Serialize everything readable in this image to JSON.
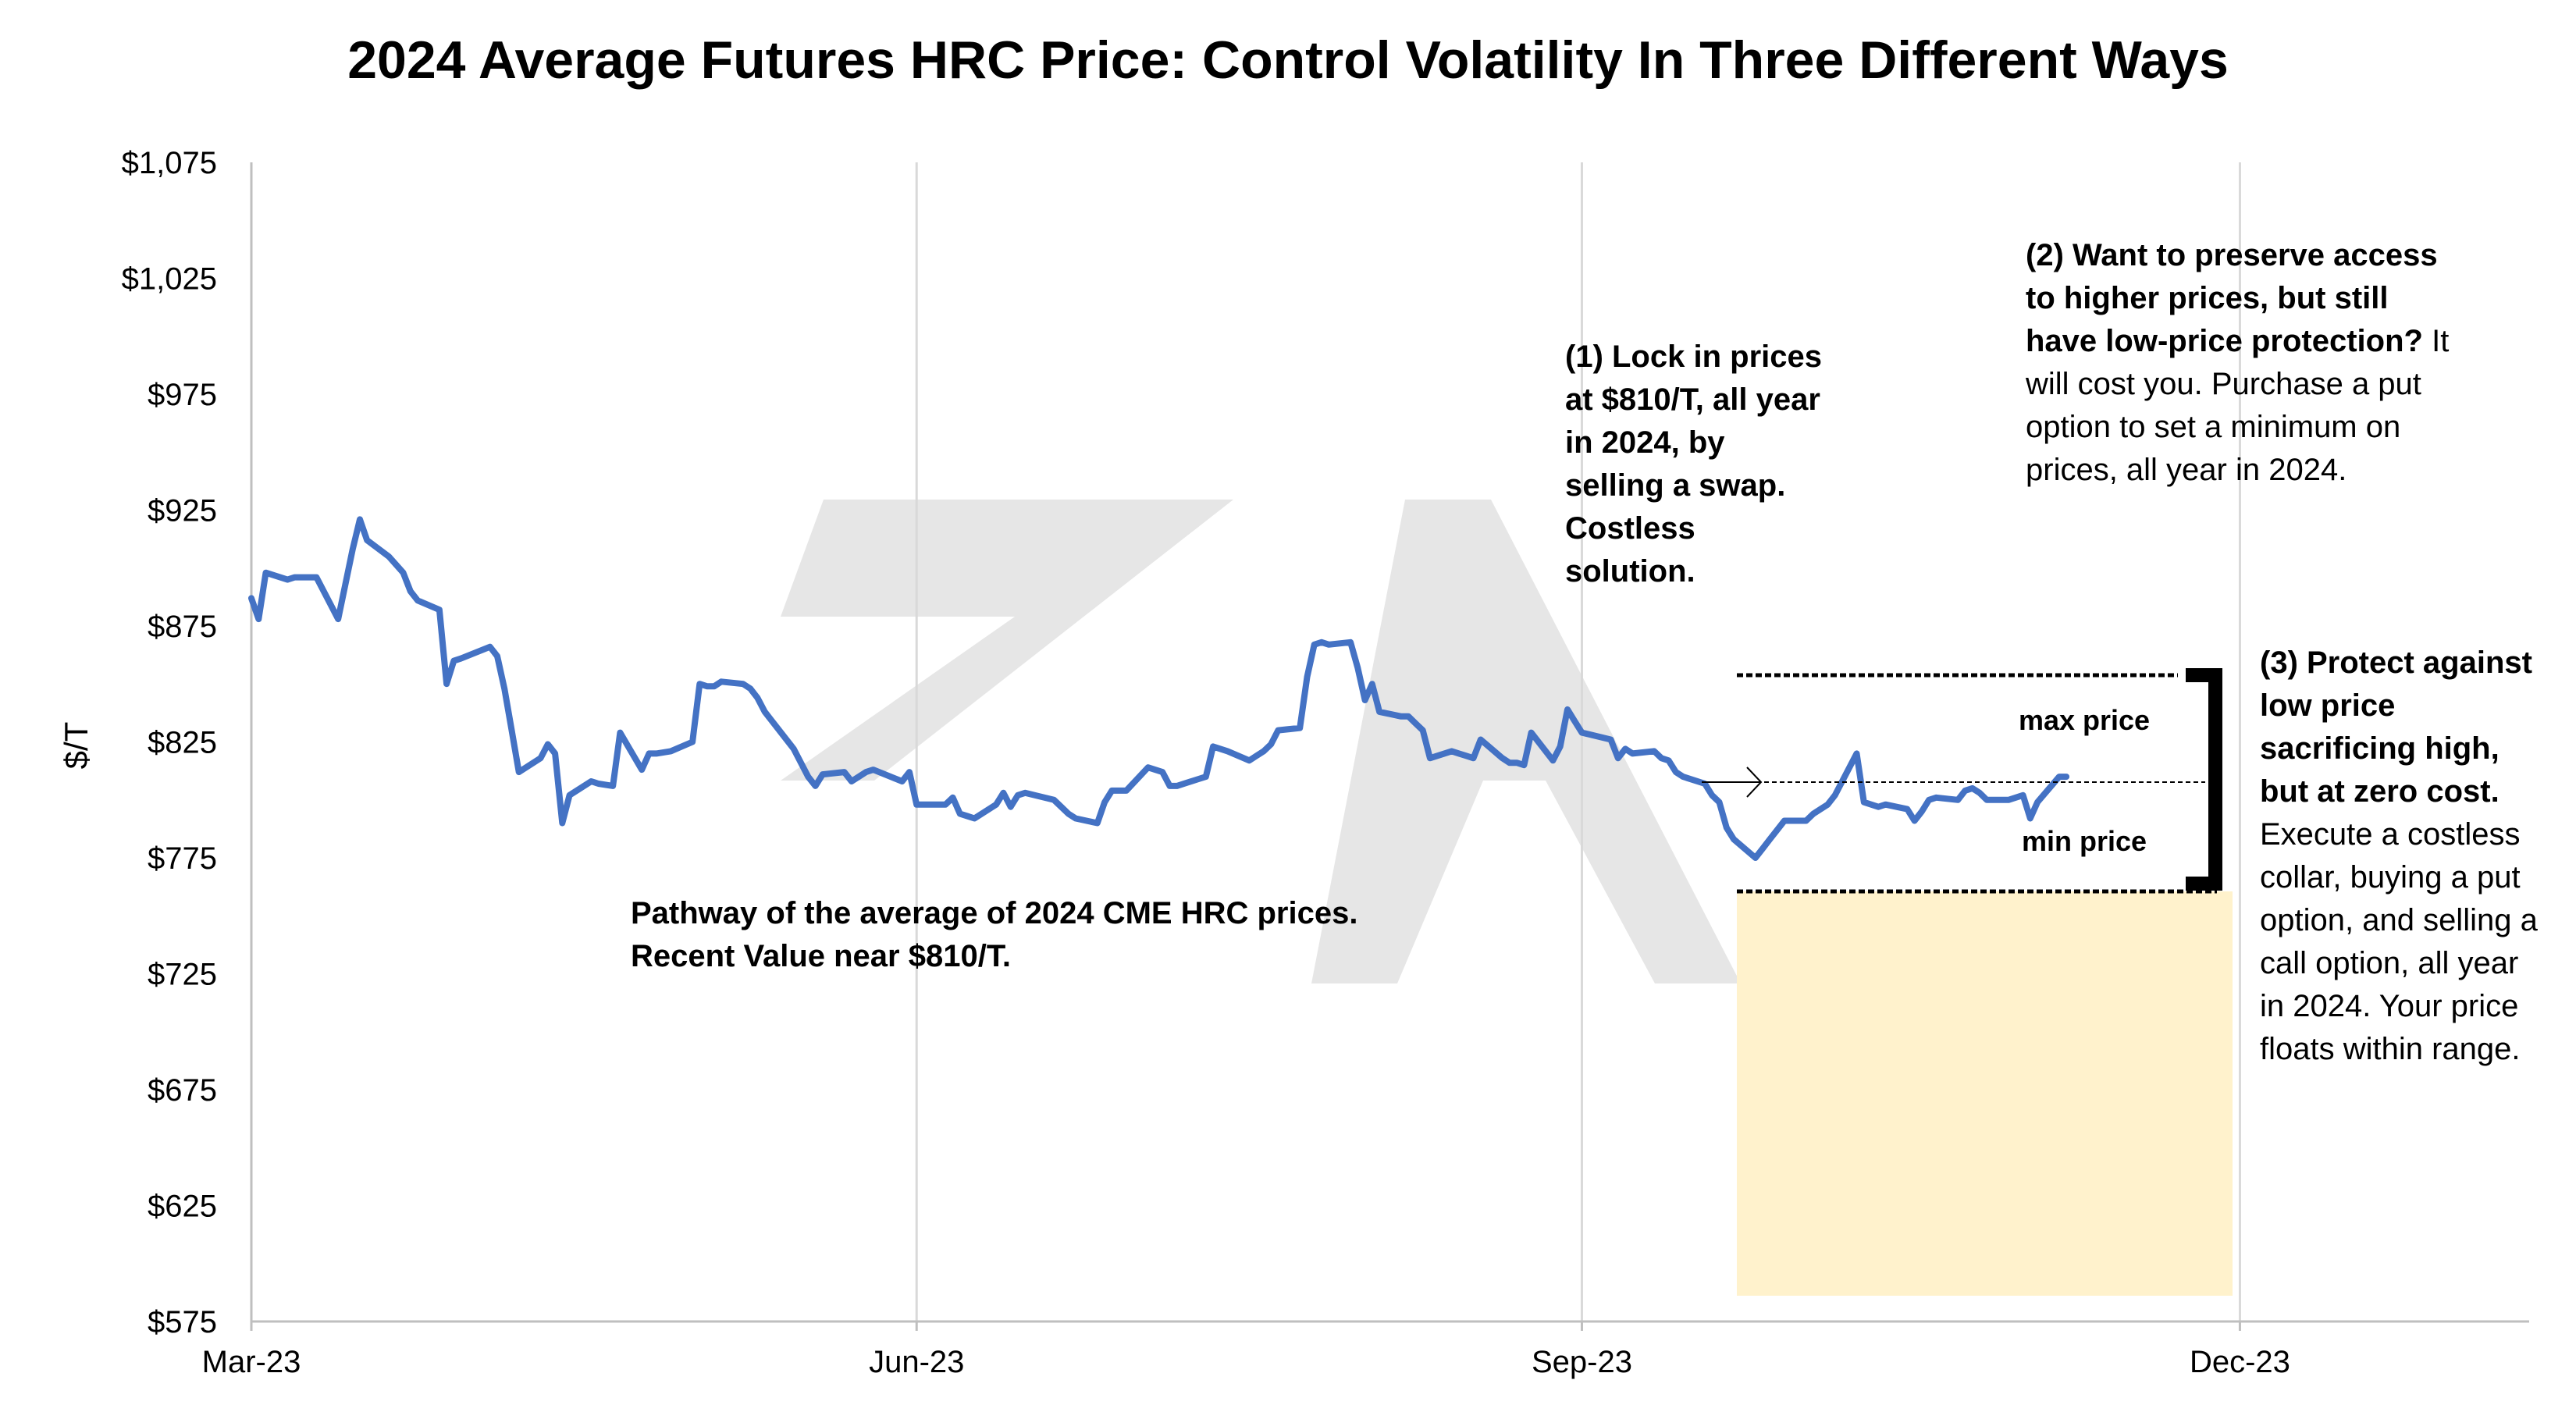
{
  "chart_data": {
    "type": "line",
    "title": "2024 Average Futures HRC Price: Control Volatility In Three Different Ways",
    "ylabel": "$/T",
    "xlabel": "",
    "ylim": [
      575,
      1075
    ],
    "yticks": [
      "$575",
      "$625",
      "$675",
      "$725",
      "$775",
      "$825",
      "$875",
      "$925",
      "$975",
      "$1,025",
      "$1,075"
    ],
    "xticks": [
      "Mar-23",
      "Jun-23",
      "Sep-23",
      "Dec-23"
    ],
    "xlim": [
      "2023-03-01",
      "2024-01-10"
    ],
    "grid": "vertical",
    "series": [
      {
        "color": "#4472C4",
        "points": [
          [
            "2023-03-01",
            887
          ],
          [
            "2023-03-02",
            878
          ],
          [
            "2023-03-03",
            898
          ],
          [
            "2023-03-06",
            895
          ],
          [
            "2023-03-07",
            896
          ],
          [
            "2023-03-10",
            896
          ],
          [
            "2023-03-13",
            878
          ],
          [
            "2023-03-15",
            908
          ],
          [
            "2023-03-16",
            921
          ],
          [
            "2023-03-17",
            912
          ],
          [
            "2023-03-20",
            905
          ],
          [
            "2023-03-22",
            898
          ],
          [
            "2023-03-23",
            890
          ],
          [
            "2023-03-24",
            886
          ],
          [
            "2023-03-27",
            882
          ],
          [
            "2023-03-28",
            850
          ],
          [
            "2023-03-29",
            860
          ],
          [
            "2023-03-30",
            861
          ],
          [
            "2023-04-03",
            866
          ],
          [
            "2023-04-04",
            862
          ],
          [
            "2023-04-05",
            848
          ],
          [
            "2023-04-06",
            830
          ],
          [
            "2023-04-07",
            812
          ],
          [
            "2023-04-10",
            818
          ],
          [
            "2023-04-11",
            824
          ],
          [
            "2023-04-12",
            820
          ],
          [
            "2023-04-13",
            790
          ],
          [
            "2023-04-14",
            802
          ],
          [
            "2023-04-17",
            808
          ],
          [
            "2023-04-18",
            807
          ],
          [
            "2023-04-20",
            806
          ],
          [
            "2023-04-21",
            829
          ],
          [
            "2023-04-24",
            813
          ],
          [
            "2023-04-25",
            820
          ],
          [
            "2023-04-26",
            820
          ],
          [
            "2023-04-28",
            821
          ],
          [
            "2023-05-01",
            825
          ],
          [
            "2023-05-02",
            850
          ],
          [
            "2023-05-03",
            849
          ],
          [
            "2023-05-04",
            849
          ],
          [
            "2023-05-05",
            851
          ],
          [
            "2023-05-08",
            850
          ],
          [
            "2023-05-09",
            848
          ],
          [
            "2023-05-10",
            844
          ],
          [
            "2023-05-11",
            838
          ],
          [
            "2023-05-12",
            834
          ],
          [
            "2023-05-15",
            822
          ],
          [
            "2023-05-16",
            816
          ],
          [
            "2023-05-17",
            810
          ],
          [
            "2023-05-18",
            806
          ],
          [
            "2023-05-19",
            811
          ],
          [
            "2023-05-22",
            812
          ],
          [
            "2023-05-23",
            808
          ],
          [
            "2023-05-24",
            810
          ],
          [
            "2023-05-25",
            812
          ],
          [
            "2023-05-26",
            813
          ],
          [
            "2023-05-30",
            808
          ],
          [
            "2023-05-31",
            812
          ],
          [
            "2023-06-01",
            798
          ],
          [
            "2023-06-02",
            798
          ],
          [
            "2023-06-05",
            798
          ],
          [
            "2023-06-06",
            801
          ],
          [
            "2023-06-07",
            794
          ],
          [
            "2023-06-08",
            793
          ],
          [
            "2023-06-09",
            792
          ],
          [
            "2023-06-12",
            798
          ],
          [
            "2023-06-13",
            803
          ],
          [
            "2023-06-14",
            797
          ],
          [
            "2023-06-15",
            802
          ],
          [
            "2023-06-16",
            803
          ],
          [
            "2023-06-20",
            800
          ],
          [
            "2023-06-21",
            797
          ],
          [
            "2023-06-22",
            794
          ],
          [
            "2023-06-23",
            792
          ],
          [
            "2023-06-26",
            790
          ],
          [
            "2023-06-27",
            799
          ],
          [
            "2023-06-28",
            804
          ],
          [
            "2023-06-29",
            804
          ],
          [
            "2023-06-30",
            804
          ],
          [
            "2023-07-03",
            814
          ],
          [
            "2023-07-05",
            812
          ],
          [
            "2023-07-06",
            806
          ],
          [
            "2023-07-07",
            806
          ],
          [
            "2023-07-10",
            809
          ],
          [
            "2023-07-11",
            810
          ],
          [
            "2023-07-12",
            823
          ],
          [
            "2023-07-13",
            822
          ],
          [
            "2023-07-14",
            821
          ],
          [
            "2023-07-17",
            817
          ],
          [
            "2023-07-18",
            819
          ],
          [
            "2023-07-19",
            821
          ],
          [
            "2023-07-20",
            824
          ],
          [
            "2023-07-21",
            830
          ],
          [
            "2023-07-24",
            831
          ],
          [
            "2023-07-25",
            853
          ],
          [
            "2023-07-26",
            867
          ],
          [
            "2023-07-27",
            868
          ],
          [
            "2023-07-28",
            867
          ],
          [
            "2023-07-31",
            868
          ],
          [
            "2023-08-01",
            857
          ],
          [
            "2023-08-02",
            843
          ],
          [
            "2023-08-03",
            850
          ],
          [
            "2023-08-04",
            838
          ],
          [
            "2023-08-07",
            836
          ],
          [
            "2023-08-08",
            836
          ],
          [
            "2023-08-09",
            833
          ],
          [
            "2023-08-10",
            830
          ],
          [
            "2023-08-11",
            818
          ],
          [
            "2023-08-14",
            821
          ],
          [
            "2023-08-15",
            820
          ],
          [
            "2023-08-16",
            819
          ],
          [
            "2023-08-17",
            818
          ],
          [
            "2023-08-18",
            826
          ],
          [
            "2023-08-21",
            818
          ],
          [
            "2023-08-22",
            816
          ],
          [
            "2023-08-23",
            816
          ],
          [
            "2023-08-24",
            815
          ],
          [
            "2023-08-25",
            829
          ],
          [
            "2023-08-28",
            817
          ],
          [
            "2023-08-29",
            823
          ],
          [
            "2023-08-30",
            839
          ],
          [
            "2023-08-31",
            834
          ],
          [
            "2023-09-01",
            829
          ],
          [
            "2023-09-05",
            826
          ],
          [
            "2023-09-06",
            818
          ],
          [
            "2023-09-07",
            822
          ],
          [
            "2023-09-08",
            820
          ],
          [
            "2023-09-11",
            821
          ],
          [
            "2023-09-12",
            818
          ],
          [
            "2023-09-13",
            817
          ],
          [
            "2023-09-14",
            812
          ],
          [
            "2023-09-15",
            810
          ],
          [
            "2023-09-18",
            807
          ],
          [
            "2023-09-19",
            802
          ],
          [
            "2023-09-20",
            799
          ],
          [
            "2023-09-21",
            788
          ],
          [
            "2023-09-22",
            783
          ],
          [
            "2023-09-25",
            775
          ],
          [
            "2023-09-26",
            779
          ],
          [
            "2023-09-27",
            783
          ],
          [
            "2023-09-28",
            787
          ],
          [
            "2023-09-29",
            791
          ],
          [
            "2023-10-02",
            791
          ],
          [
            "2023-10-03",
            794
          ],
          [
            "2023-10-04",
            796
          ],
          [
            "2023-10-05",
            798
          ],
          [
            "2023-10-06",
            802
          ],
          [
            "2023-10-09",
            820
          ],
          [
            "2023-10-10",
            799
          ],
          [
            "2023-10-11",
            798
          ],
          [
            "2023-10-12",
            797
          ],
          [
            "2023-10-13",
            798
          ],
          [
            "2023-10-16",
            796
          ],
          [
            "2023-10-17",
            791
          ],
          [
            "2023-10-18",
            795
          ],
          [
            "2023-10-19",
            800
          ],
          [
            "2023-10-20",
            801
          ],
          [
            "2023-10-23",
            800
          ],
          [
            "2023-10-24",
            804
          ],
          [
            "2023-10-25",
            805
          ],
          [
            "2023-10-26",
            803
          ],
          [
            "2023-10-27",
            800
          ],
          [
            "2023-10-30",
            800
          ],
          [
            "2023-10-31",
            801
          ],
          [
            "2023-11-01",
            802
          ],
          [
            "2023-11-02",
            792
          ],
          [
            "2023-11-03",
            799
          ],
          [
            "2023-11-06",
            810
          ],
          [
            "2023-11-07",
            810
          ]
        ]
      }
    ],
    "annotations": {
      "swap_text": "(1) Lock in prices at $810/T, all year in 2024, by selling a swap. Costless solution.",
      "put_bold": "(2) Want to preserve access to higher prices, but still have low-price protection?",
      "put_rest": "It will cost you. Purchase a put option to set a minimum on prices, all year in 2024.",
      "collar_bold": "(3) Protect against low price sacrificing high, but at zero cost.",
      "collar_rest": "Execute a costless collar, buying a put option, and selling a call option, all year in 2024.  Your price floats within range.",
      "pathway": "Pathway of the average of 2024 CME HRC prices.  Recent Value near $810/T.",
      "max_price": "max price",
      "min_price": "min price",
      "put_region_color": "#FFF2CC",
      "watermark_color": "#E6E6E6"
    }
  }
}
